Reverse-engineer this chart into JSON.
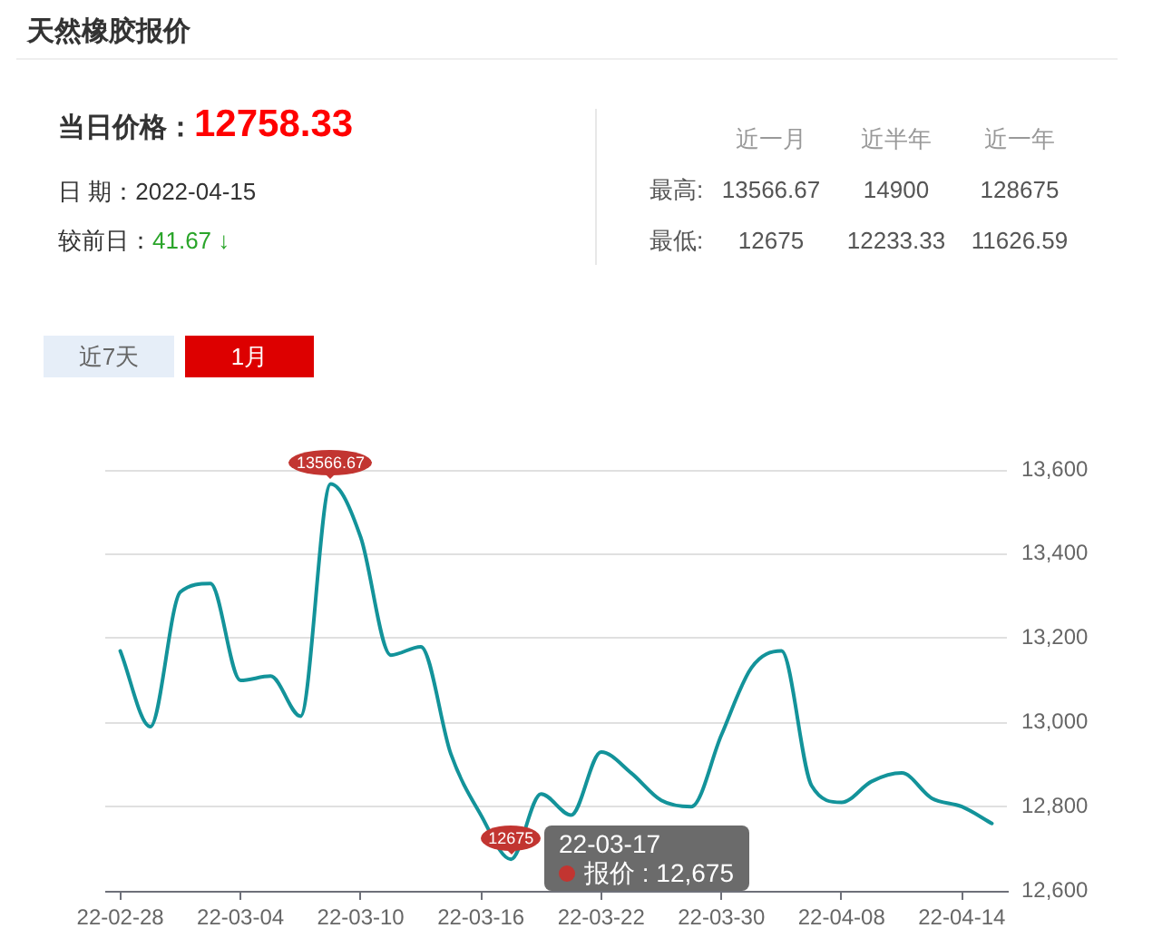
{
  "chart_data": {
    "type": "line",
    "title": "天然橡胶报价",
    "annotations": [
      "当日价格：",
      "12758.33",
      "日 期：2022-04-15",
      "较前日：",
      "41.67 ↓",
      "近一月",
      "近半年",
      "近一年",
      "最高:",
      "13566.67",
      "14900",
      "128675",
      "最低:",
      "12675",
      "12233.33",
      "11626.59",
      "近7天",
      "1月",
      "22-03-17\n报价 : 12,675"
    ],
    "categories": [
      "22-02-28",
      null,
      null,
      null,
      "22-03-04",
      null,
      null,
      null,
      "22-03-10",
      null,
      null,
      null,
      "22-03-16",
      null,
      null,
      null,
      "22-03-22",
      null,
      null,
      null,
      "22-03-30",
      null,
      null,
      null,
      "22-04-08",
      null,
      null,
      null,
      "22-04-14",
      null
    ],
    "values": [
      13170,
      12990,
      13310,
      13330,
      13100,
      13110,
      13015,
      13566.67,
      13440,
      13160,
      13180,
      12925,
      12780,
      12675,
      12830,
      12780,
      12930,
      12880,
      12815,
      12800,
      12970,
      13130,
      13170,
      12850,
      12810,
      12860,
      12880,
      12820,
      12800,
      12760
    ],
    "value_labels": [
      null,
      null,
      null,
      null,
      null,
      null,
      null,
      "13566.67",
      null,
      null,
      null,
      null,
      null,
      "12675",
      null,
      null,
      null,
      null,
      null,
      null,
      null,
      null,
      null,
      null,
      null,
      null,
      null,
      null,
      null,
      null
    ],
    "color": "#13939a",
    "marker": "none",
    "grid": "y",
    "ylim": [
      12600,
      13600
    ],
    "yticks": [
      {
        "value": 12600,
        "label": "12,600"
      },
      {
        "value": 12800,
        "label": "12,800"
      },
      {
        "value": 13000,
        "label": "13,000"
      },
      {
        "value": 13200,
        "label": "13,200"
      },
      {
        "value": 13400,
        "label": "13,400"
      },
      {
        "value": 13600,
        "label": "13,600"
      }
    ]
  }
}
